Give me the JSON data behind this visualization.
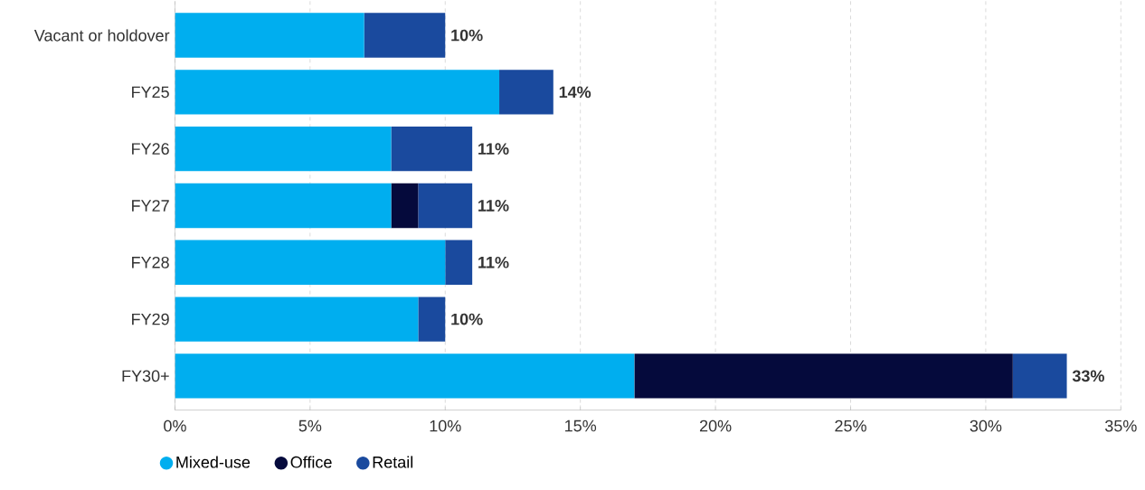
{
  "chart_data": {
    "type": "bar",
    "orientation": "horizontal",
    "stacked": true,
    "categories": [
      "Vacant or holdover",
      "FY25",
      "FY26",
      "FY27",
      "FY28",
      "FY29",
      "FY30+"
    ],
    "series": [
      {
        "name": "Mixed-use",
        "color": "#00aeef",
        "values": [
          7,
          12,
          8,
          8,
          10,
          9,
          17
        ]
      },
      {
        "name": "Office",
        "color": "#050a3c",
        "values": [
          0,
          0,
          0,
          1,
          0,
          0,
          14
        ]
      },
      {
        "name": "Retail",
        "color": "#1a4a9e",
        "values": [
          3,
          2,
          3,
          2,
          1,
          1,
          2
        ]
      }
    ],
    "totals": [
      "10%",
      "14%",
      "11%",
      "11%",
      "11%",
      "10%",
      "33%"
    ],
    "xlim": [
      0,
      35
    ],
    "xticks": [
      {
        "value": 0,
        "label": "0%"
      },
      {
        "value": 5,
        "label": "5%"
      },
      {
        "value": 10,
        "label": "10%"
      },
      {
        "value": 15,
        "label": "15%"
      },
      {
        "value": 20,
        "label": "20%"
      },
      {
        "value": 25,
        "label": "25%"
      },
      {
        "value": 30,
        "label": "30%"
      },
      {
        "value": 35,
        "label": "35%"
      }
    ],
    "grid": "x",
    "legend": "bottom"
  }
}
